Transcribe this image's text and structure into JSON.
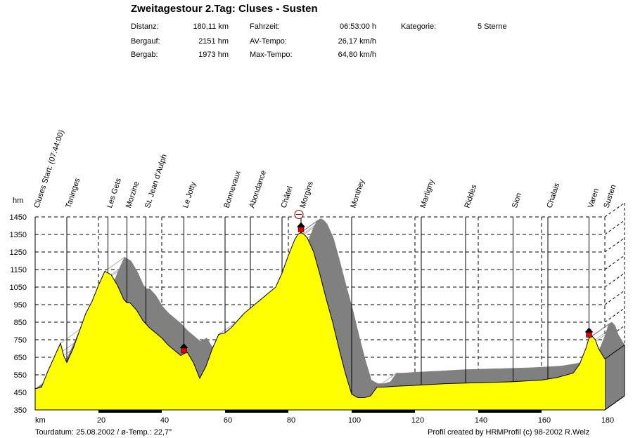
{
  "header": {
    "title": "Zweitagestour 2.Tag: Cluses - Susten",
    "labels": {
      "distanz": "Distanz:",
      "bergauf": "Bergauf:",
      "bergab": "Bergab:",
      "fahrzeit": "Fahrzeit:",
      "av_tempo": "AV-Tempo:",
      "max_tempo": "Max-Tempo:",
      "kategorie": "Kategorie:"
    },
    "values": {
      "distanz": "180,11 km",
      "bergauf": "2151 hm",
      "bergab": "1973 hm",
      "fahrzeit": "06:53:00 h",
      "av_tempo": "26,17 km/h",
      "max_tempo": "64,80 km/h",
      "kategorie": "5 Sterne"
    }
  },
  "footer": {
    "tourdatum": "Tourdatum: 25.08.2002  /  ø-Temp.: 22,7°",
    "credit": "Profil created by HRMProfil (c) 98-2002 R.Welz"
  },
  "chart_data": {
    "type": "area",
    "xlabel": "km",
    "ylabel": "hm",
    "xlim": [
      0,
      180
    ],
    "ylim": [
      350,
      1450
    ],
    "xticks": [
      20,
      40,
      60,
      80,
      100,
      120,
      140,
      160,
      180
    ],
    "yticks": [
      350,
      450,
      550,
      650,
      750,
      850,
      950,
      1050,
      1150,
      1250,
      1350,
      1450
    ],
    "grid": true,
    "colors": {
      "fill": "#ffff00",
      "shadow": "#808080",
      "marker": "#e00000"
    },
    "series": [
      {
        "x": [
          0,
          2,
          4,
          6,
          8,
          9,
          10,
          12,
          14,
          16,
          18,
          20,
          22,
          24,
          26,
          28,
          29,
          30,
          32,
          34,
          36,
          38,
          40,
          42,
          44,
          46,
          47,
          48,
          50,
          52,
          54,
          56,
          58,
          60,
          62,
          64,
          66,
          68,
          70,
          72,
          74,
          76,
          78,
          80,
          82,
          83,
          84,
          85,
          86,
          88,
          90,
          92,
          94,
          96,
          98,
          100,
          102,
          104,
          106,
          108,
          110,
          114,
          120,
          130,
          140,
          150,
          160,
          165,
          170,
          172,
          174,
          175,
          176,
          177,
          178,
          180
        ],
        "y": [
          470,
          480,
          570,
          650,
          730,
          660,
          620,
          700,
          800,
          900,
          970,
          1060,
          1140,
          1120,
          1060,
          980,
          960,
          960,
          920,
          860,
          820,
          790,
          760,
          720,
          690,
          660,
          670,
          680,
          620,
          530,
          600,
          700,
          780,
          790,
          820,
          860,
          900,
          930,
          960,
          990,
          1020,
          1050,
          1130,
          1230,
          1320,
          1350,
          1360,
          1350,
          1330,
          1250,
          1120,
          980,
          850,
          700,
          560,
          440,
          420,
          420,
          430,
          480,
          480,
          485,
          490,
          500,
          505,
          510,
          520,
          535,
          560,
          610,
          700,
          760,
          770,
          750,
          700,
          640
        ]
      }
    ],
    "places": [
      {
        "name": "Cluses Start: (07:44:00)",
        "km": 0
      },
      {
        "name": "Taninges",
        "km": 10
      },
      {
        "name": "Les Gets",
        "km": 23
      },
      {
        "name": "Morzine",
        "km": 29
      },
      {
        "name": "St. Jean d'Aulph",
        "km": 35
      },
      {
        "name": "Le Jotty",
        "km": 47
      },
      {
        "name": "Bonnevaux",
        "km": 60
      },
      {
        "name": "Abondance",
        "km": 68
      },
      {
        "name": "Châtel",
        "km": 78
      },
      {
        "name": "Morgins",
        "km": 84
      },
      {
        "name": "Monthey",
        "km": 100
      },
      {
        "name": "Martigny",
        "km": 122
      },
      {
        "name": "Riddes",
        "km": 136
      },
      {
        "name": "Sion",
        "km": 151
      },
      {
        "name": "Chalais",
        "km": 162
      },
      {
        "name": "Varen",
        "km": 175
      },
      {
        "name": "Susten",
        "km": 180
      }
    ],
    "markers": [
      {
        "type": "house",
        "km": 47
      },
      {
        "type": "house",
        "km": 84
      },
      {
        "type": "house",
        "km": 175
      },
      {
        "type": "summit",
        "km": 84
      }
    ]
  }
}
